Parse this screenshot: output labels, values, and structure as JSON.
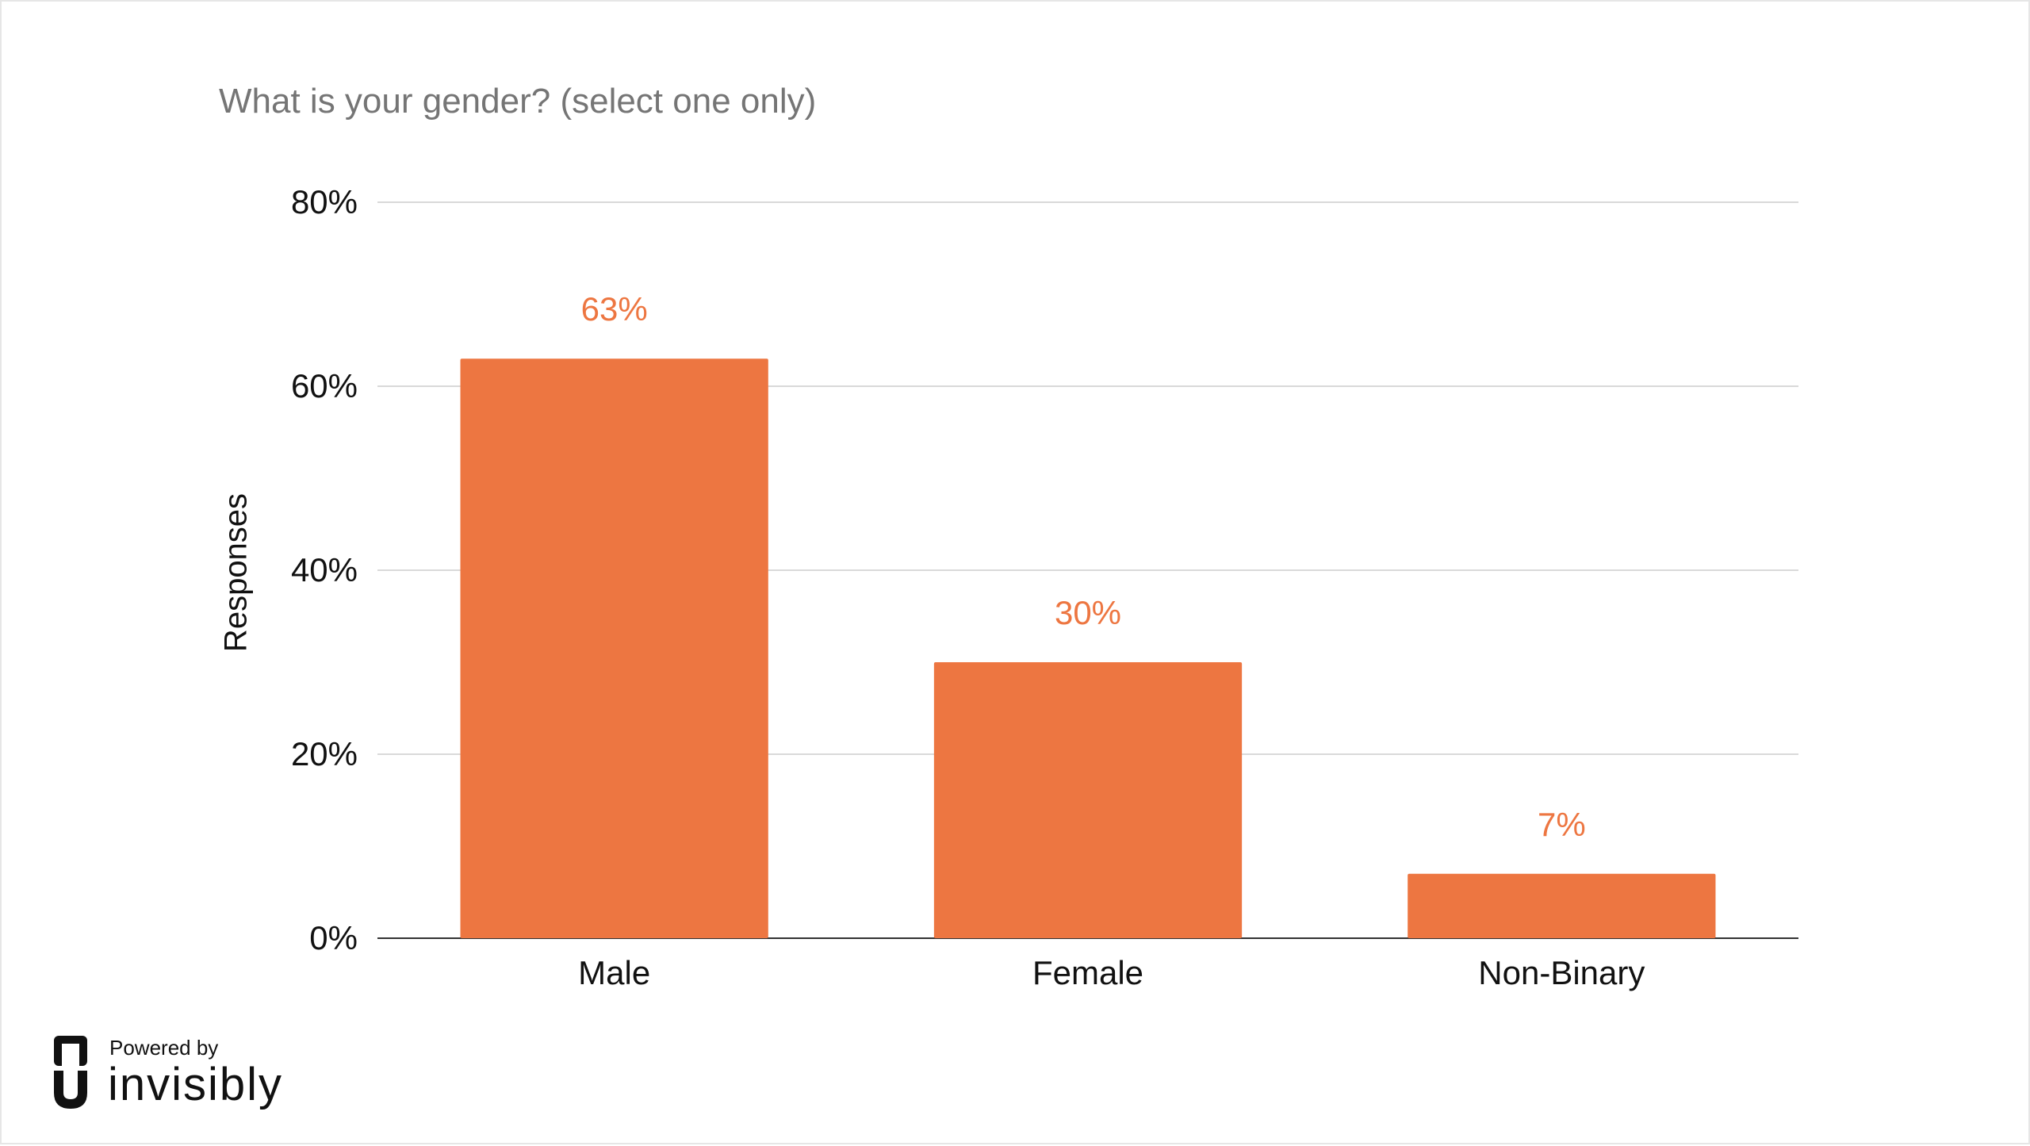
{
  "brand": {
    "powered_label": "Powered by",
    "name": "invisibly",
    "logo_icon": "invisibly-logo-icon"
  },
  "chart_data": {
    "type": "bar",
    "title": "What is your gender? (select one only)",
    "xlabel": "",
    "ylabel": "Responses",
    "categories": [
      "Male",
      "Female",
      "Non-Binary"
    ],
    "values": [
      63,
      30,
      7
    ],
    "data_labels": [
      "63%",
      "30%",
      "7%"
    ],
    "y_ticks": [
      "0%",
      "20%",
      "40%",
      "60%",
      "80%"
    ],
    "y_tick_values": [
      0,
      20,
      40,
      60,
      80
    ],
    "ylim": [
      0,
      80
    ],
    "grid": true,
    "legend": "none",
    "colors": {
      "bar": "#ED7641",
      "data_label": "#ED7641",
      "grid": "#d9d9d9",
      "baseline": "#333333",
      "tick_label": "#111111",
      "title": "#757575"
    }
  }
}
